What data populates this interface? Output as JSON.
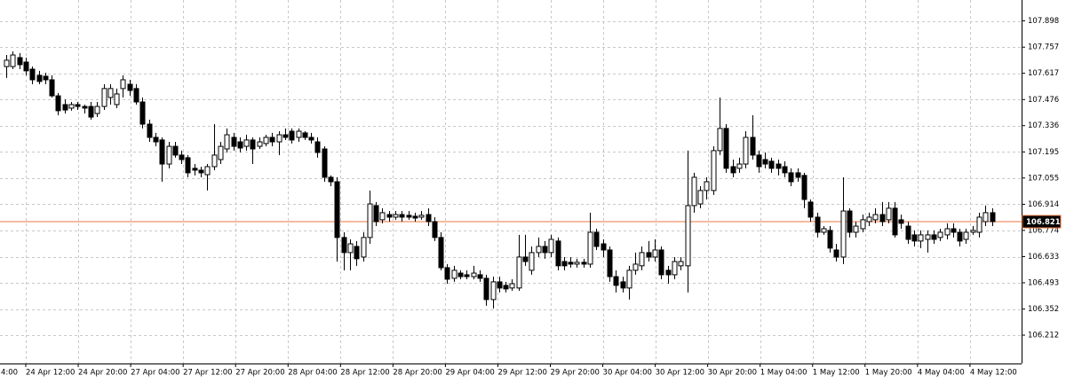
{
  "chart_data": {
    "type": "candlestick",
    "ylim": [
      106.06,
      108.01
    ],
    "yticks": [
      107.898,
      107.757,
      107.617,
      107.476,
      107.336,
      107.195,
      107.055,
      106.914,
      106.774,
      106.633,
      106.493,
      106.352,
      106.212
    ],
    "xtick_labels": [
      "4:00",
      "24 Apr 12:00",
      "24 Apr 20:00",
      "27 Apr 04:00",
      "27 Apr 12:00",
      "27 Apr 20:00",
      "28 Apr 04:00",
      "28 Apr 12:00",
      "28 Apr 20:00",
      "29 Apr 04:00",
      "29 Apr 12:00",
      "29 Apr 20:00",
      "30 Apr 04:00",
      "30 Apr 12:00",
      "30 Apr 20:00",
      "1 May 04:00",
      "1 May 12:00",
      "1 May 20:00",
      "4 May 04:00",
      "4 May 12:00"
    ],
    "grid": true,
    "up_color": "#ffffff",
    "down_color": "#000000",
    "price_line": {
      "value": 106.821,
      "label": "106.821",
      "color": "#f0763c"
    },
    "ohlc": [
      [
        107.653,
        107.715,
        107.592,
        107.687
      ],
      [
        107.653,
        107.734,
        107.639,
        107.715
      ],
      [
        107.701,
        107.725,
        107.639,
        107.663
      ],
      [
        107.677,
        107.701,
        107.606,
        107.63
      ],
      [
        107.639,
        107.653,
        107.558,
        107.582
      ],
      [
        107.606,
        107.63,
        107.558,
        107.573
      ],
      [
        107.601,
        107.62,
        107.558,
        107.582
      ],
      [
        107.582,
        107.606,
        107.487,
        107.496
      ],
      [
        107.496,
        107.511,
        107.392,
        107.416
      ],
      [
        107.449,
        107.477,
        107.401,
        107.42
      ],
      [
        107.43,
        107.463,
        107.416,
        107.449
      ],
      [
        107.449,
        107.463,
        107.42,
        107.439
      ],
      [
        107.439,
        107.449,
        107.401,
        107.43
      ],
      [
        107.439,
        107.463,
        107.368,
        107.382
      ],
      [
        107.401,
        107.463,
        107.382,
        107.439
      ],
      [
        107.439,
        107.558,
        107.42,
        107.535
      ],
      [
        107.487,
        107.558,
        107.449,
        107.535
      ],
      [
        107.449,
        107.535,
        107.43,
        107.506
      ],
      [
        107.535,
        107.606,
        107.487,
        107.582
      ],
      [
        107.558,
        107.582,
        107.496,
        107.525
      ],
      [
        107.535,
        107.558,
        107.449,
        107.463
      ],
      [
        107.463,
        107.487,
        107.321,
        107.344
      ],
      [
        107.344,
        107.368,
        107.249,
        107.273
      ],
      [
        107.273,
        107.297,
        107.225,
        107.249
      ],
      [
        107.259,
        107.273,
        107.035,
        107.13
      ],
      [
        107.13,
        107.249,
        107.107,
        107.225
      ],
      [
        107.225,
        107.249,
        107.164,
        107.178
      ],
      [
        107.178,
        107.202,
        107.13,
        107.154
      ],
      [
        107.164,
        107.178,
        107.059,
        107.083
      ],
      [
        107.107,
        107.13,
        107.069,
        107.097
      ],
      [
        107.097,
        107.116,
        107.059,
        107.083
      ],
      [
        107.073,
        107.13,
        106.988,
        107.116
      ],
      [
        107.116,
        107.344,
        107.097,
        107.178
      ],
      [
        107.154,
        107.249,
        107.13,
        107.225
      ],
      [
        107.211,
        107.321,
        107.192,
        107.287
      ],
      [
        107.273,
        107.297,
        107.202,
        107.225
      ],
      [
        107.249,
        107.273,
        107.192,
        107.216
      ],
      [
        107.225,
        107.287,
        107.202,
        107.259
      ],
      [
        107.259,
        107.273,
        107.13,
        107.211
      ],
      [
        107.225,
        107.273,
        107.211,
        107.249
      ],
      [
        107.24,
        107.287,
        107.225,
        107.273
      ],
      [
        107.273,
        107.297,
        107.225,
        107.249
      ],
      [
        107.249,
        107.306,
        107.178,
        107.287
      ],
      [
        107.287,
        107.321,
        107.259,
        107.273
      ],
      [
        107.306,
        107.321,
        107.24,
        107.259
      ],
      [
        107.273,
        107.321,
        107.249,
        107.306
      ],
      [
        107.297,
        107.306,
        107.259,
        107.273
      ],
      [
        107.273,
        107.297,
        107.24,
        107.259
      ],
      [
        107.249,
        107.273,
        107.164,
        107.192
      ],
      [
        107.211,
        107.225,
        107.035,
        107.059
      ],
      [
        107.059,
        107.069,
        107.011,
        107.035
      ],
      [
        107.035,
        107.059,
        106.607,
        106.736
      ],
      [
        106.736,
        106.764,
        106.56,
        106.655
      ],
      [
        106.655,
        106.726,
        106.56,
        106.702
      ],
      [
        106.688,
        106.717,
        106.584,
        106.622
      ],
      [
        106.631,
        106.764,
        106.607,
        106.736
      ],
      [
        106.736,
        106.988,
        106.702,
        106.916
      ],
      [
        106.907,
        106.926,
        106.797,
        106.821
      ],
      [
        106.831,
        106.893,
        106.812,
        106.869
      ],
      [
        106.859,
        106.878,
        106.821,
        106.845
      ],
      [
        106.845,
        106.878,
        106.831,
        106.859
      ],
      [
        106.859,
        106.878,
        106.821,
        106.845
      ],
      [
        106.855,
        106.878,
        106.831,
        106.845
      ],
      [
        106.85,
        106.869,
        106.821,
        106.84
      ],
      [
        106.845,
        106.878,
        106.831,
        106.855
      ],
      [
        106.859,
        106.893,
        106.797,
        106.821
      ],
      [
        106.821,
        106.845,
        106.717,
        106.736
      ],
      [
        106.736,
        106.764,
        106.56,
        106.574
      ],
      [
        106.574,
        106.593,
        106.488,
        106.512
      ],
      [
        106.517,
        106.584,
        106.498,
        106.56
      ],
      [
        106.545,
        106.56,
        106.512,
        106.526
      ],
      [
        106.536,
        106.56,
        106.512,
        106.526
      ],
      [
        106.526,
        106.584,
        106.512,
        106.545
      ],
      [
        106.536,
        106.56,
        106.498,
        106.517
      ],
      [
        106.517,
        106.536,
        106.37,
        106.403
      ],
      [
        106.403,
        106.526,
        106.355,
        106.498
      ],
      [
        106.498,
        106.526,
        106.441,
        106.465
      ],
      [
        106.479,
        106.498,
        106.441,
        106.46
      ],
      [
        106.465,
        106.512,
        106.45,
        106.488
      ],
      [
        106.465,
        106.75,
        106.45,
        106.631
      ],
      [
        106.631,
        106.75,
        106.584,
        106.607
      ],
      [
        106.56,
        106.688,
        106.536,
        106.655
      ],
      [
        106.655,
        106.736,
        106.631,
        106.688
      ],
      [
        106.688,
        106.717,
        106.622,
        106.655
      ],
      [
        106.655,
        106.75,
        106.631,
        106.726
      ],
      [
        106.717,
        106.736,
        106.56,
        106.584
      ],
      [
        106.607,
        106.631,
        106.56,
        106.584
      ],
      [
        106.603,
        106.631,
        106.574,
        106.593
      ],
      [
        106.593,
        106.622,
        106.574,
        106.603
      ],
      [
        106.603,
        106.622,
        106.574,
        106.593
      ],
      [
        106.593,
        106.869,
        106.574,
        106.764
      ],
      [
        106.764,
        106.783,
        106.669,
        106.688
      ],
      [
        106.702,
        106.726,
        106.631,
        106.669
      ],
      [
        106.669,
        106.688,
        106.498,
        106.526
      ],
      [
        106.526,
        106.56,
        106.441,
        106.479
      ],
      [
        106.498,
        106.526,
        106.441,
        106.465
      ],
      [
        106.465,
        106.584,
        106.403,
        106.56
      ],
      [
        106.56,
        106.655,
        106.536,
        106.593
      ],
      [
        106.584,
        106.688,
        106.56,
        106.655
      ],
      [
        106.655,
        106.717,
        106.607,
        106.631
      ],
      [
        106.631,
        106.726,
        106.607,
        106.669
      ],
      [
        106.669,
        106.688,
        106.512,
        106.536
      ],
      [
        106.56,
        106.584,
        106.488,
        106.536
      ],
      [
        106.536,
        106.631,
        106.512,
        106.607
      ],
      [
        106.584,
        106.631,
        106.56,
        106.607
      ],
      [
        106.584,
        107.202,
        106.441,
        106.907
      ],
      [
        106.907,
        107.083,
        106.869,
        107.059
      ],
      [
        106.916,
        107.011,
        106.893,
        106.988
      ],
      [
        106.988,
        107.059,
        106.94,
        107.035
      ],
      [
        106.988,
        107.225,
        106.964,
        107.202
      ],
      [
        107.202,
        107.487,
        107.178,
        107.321
      ],
      [
        107.321,
        107.344,
        107.083,
        107.107
      ],
      [
        107.116,
        107.154,
        107.059,
        107.083
      ],
      [
        107.107,
        107.164,
        107.083,
        107.13
      ],
      [
        107.13,
        107.306,
        107.107,
        107.273
      ],
      [
        107.273,
        107.392,
        107.154,
        107.178
      ],
      [
        107.178,
        107.202,
        107.083,
        107.116
      ],
      [
        107.154,
        107.192,
        107.107,
        107.13
      ],
      [
        107.145,
        107.164,
        107.083,
        107.107
      ],
      [
        107.13,
        107.154,
        107.069,
        107.107
      ],
      [
        107.116,
        107.145,
        107.059,
        107.083
      ],
      [
        107.083,
        107.107,
        107.011,
        107.035
      ],
      [
        107.083,
        107.107,
        107.035,
        107.059
      ],
      [
        107.069,
        107.083,
        106.893,
        106.94
      ],
      [
        106.926,
        106.94,
        106.821,
        106.845
      ],
      [
        106.845,
        106.869,
        106.736,
        106.764
      ],
      [
        106.764,
        106.797,
        106.75,
        106.783
      ],
      [
        106.774,
        106.797,
        106.655,
        106.679
      ],
      [
        106.669,
        106.702,
        106.607,
        106.631
      ],
      [
        106.631,
        107.059,
        106.593,
        106.878
      ],
      [
        106.878,
        106.893,
        106.736,
        106.764
      ],
      [
        106.764,
        106.821,
        106.736,
        106.797
      ],
      [
        106.783,
        106.859,
        106.764,
        106.831
      ],
      [
        106.821,
        106.869,
        106.797,
        106.845
      ],
      [
        106.831,
        106.893,
        106.812,
        106.859
      ],
      [
        106.859,
        106.926,
        106.797,
        106.821
      ],
      [
        106.831,
        106.926,
        106.812,
        106.893
      ],
      [
        106.893,
        106.926,
        106.736,
        106.75
      ],
      [
        106.831,
        106.859,
        106.783,
        106.812
      ],
      [
        106.797,
        106.821,
        106.702,
        106.726
      ],
      [
        106.75,
        106.774,
        106.688,
        106.717
      ],
      [
        106.717,
        106.774,
        106.679,
        106.75
      ],
      [
        106.726,
        106.774,
        106.655,
        106.75
      ],
      [
        106.75,
        106.774,
        106.702,
        106.726
      ],
      [
        106.736,
        106.783,
        106.717,
        106.764
      ],
      [
        106.75,
        106.812,
        106.726,
        106.783
      ],
      [
        106.783,
        106.812,
        106.736,
        106.764
      ],
      [
        106.764,
        106.783,
        106.688,
        106.717
      ],
      [
        106.726,
        106.783,
        106.702,
        106.764
      ],
      [
        106.764,
        106.797,
        106.75,
        106.774
      ],
      [
        106.764,
        106.869,
        106.736,
        106.845
      ],
      [
        106.821,
        106.907,
        106.797,
        106.869
      ],
      [
        106.869,
        106.893,
        106.797,
        106.821
      ]
    ]
  }
}
